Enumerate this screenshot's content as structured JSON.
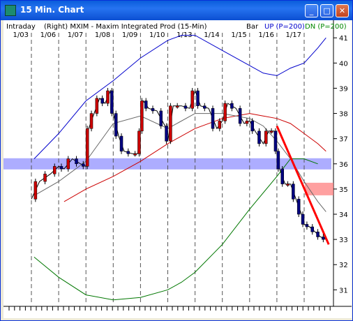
{
  "window": {
    "title": "15 Min. Chart",
    "buttons": {
      "minimize": "_",
      "maximize": "□",
      "close": "✕"
    }
  },
  "chart_header": {
    "left": "Intraday",
    "mid": "(Right)  MXIM - Maxim Integrated Prod  (15-Min)",
    "type": "Bar",
    "up": "UP (P=200)",
    "dn": "DN (P=200)"
  },
  "colors": {
    "accent_up": "#0000cc",
    "accent_dn": "#008800",
    "candle_up": "#cc0000",
    "candle_dn": "#000080",
    "resistance_band": "#6a6aff",
    "price_marker": "#ff7777"
  },
  "chart_data": {
    "type": "line",
    "title": "",
    "x_tick_labels": [
      "1/03",
      "1/06",
      "1/07",
      "1/08",
      "1/09",
      "1/10",
      "1/13",
      "1/14",
      "1/15",
      "1/16",
      "1/17"
    ],
    "y_ticks": [
      31,
      32,
      33,
      34,
      35,
      36,
      37,
      38,
      39,
      40,
      41
    ],
    "ylim": [
      30.4,
      41.2
    ],
    "highlighted_price": 35,
    "resistance_level": 36,
    "series": [
      {
        "role": "price",
        "x": [
          0,
          0.3,
          0.7,
          1.0,
          1.2,
          1.5,
          1.8,
          2.0,
          2.1,
          2.3,
          2.5,
          2.7,
          2.9,
          3.0,
          3.2,
          3.4,
          3.7,
          3.9,
          4.0,
          4.1,
          4.3,
          4.6,
          4.9,
          5.0,
          5.2,
          5.5,
          5.8,
          6.0,
          6.2,
          6.5,
          6.8,
          7.0,
          7.2,
          7.5,
          7.8,
          8.0,
          8.2,
          8.5,
          8.7,
          8.9,
          9.0,
          9.1,
          9.3,
          9.5,
          9.7,
          9.9,
          10.0,
          10.2,
          10.4,
          10.6,
          10.8
        ],
        "y": [
          34.6,
          35.3,
          35.6,
          35.9,
          35.8,
          36.2,
          36.0,
          35.9,
          37.4,
          38.0,
          38.6,
          38.4,
          38.9,
          38.0,
          37.1,
          36.5,
          36.4,
          36.4,
          37.3,
          38.5,
          38.2,
          38.1,
          37.5,
          36.9,
          38.3,
          38.3,
          38.2,
          38.9,
          38.3,
          38.2,
          37.4,
          37.7,
          38.4,
          38.2,
          37.6,
          37.7,
          37.3,
          36.8,
          37.3,
          37.3,
          36.5,
          35.8,
          35.2,
          35.2,
          34.6,
          34.0,
          33.6,
          33.5,
          33.3,
          33.1,
          33.0
        ]
      },
      {
        "name": "UP",
        "role": "upper-band",
        "x": [
          0.1,
          1,
          2,
          3,
          4,
          5,
          5.5,
          6,
          7,
          8,
          8.5,
          9,
          9.5,
          10,
          10.5,
          10.8
        ],
        "y": [
          36.2,
          37.2,
          38.5,
          39.3,
          40.2,
          40.9,
          41.1,
          41.1,
          40.5,
          39.9,
          39.6,
          39.5,
          39.8,
          40.0,
          40.6,
          41.0
        ]
      },
      {
        "name": "DN",
        "role": "lower-band",
        "x": [
          0.1,
          1,
          2,
          3,
          4,
          5,
          5.5,
          6,
          7,
          8,
          9,
          9.5,
          10,
          10.5
        ],
        "y": [
          32.3,
          31.5,
          30.8,
          30.6,
          30.7,
          31.0,
          31.3,
          31.7,
          32.8,
          34.2,
          35.5,
          36.2,
          36.2,
          36.0
        ]
      },
      {
        "role": "mid-average",
        "x": [
          1.2,
          2,
          3,
          4,
          5,
          6,
          7,
          8,
          8.5,
          9,
          9.5,
          10,
          10.5,
          10.8
        ],
        "y": [
          34.5,
          35.0,
          35.5,
          36.1,
          36.8,
          37.4,
          37.8,
          38.0,
          37.9,
          37.8,
          37.6,
          37.2,
          36.8,
          36.5
        ]
      },
      {
        "role": "short-average",
        "x": [
          0.2,
          1,
          2,
          3,
          4,
          5,
          6,
          7,
          8,
          8.5,
          9,
          9.5,
          10,
          10.5,
          10.8
        ],
        "y": [
          34.8,
          35.3,
          36.1,
          37.6,
          37.9,
          37.4,
          38.0,
          38.0,
          37.8,
          37.5,
          36.9,
          36.2,
          35.3,
          34.5,
          34.1
        ]
      },
      {
        "role": "trend-line",
        "x": [
          9.0,
          10.9
        ],
        "y": [
          37.5,
          32.8
        ]
      }
    ]
  }
}
